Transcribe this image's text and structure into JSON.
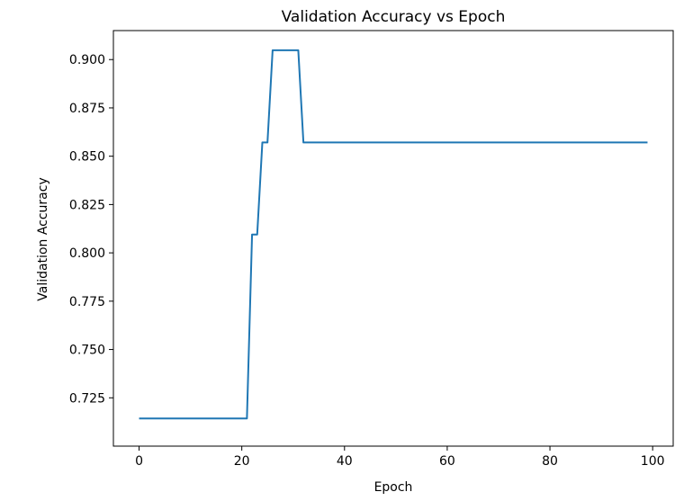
{
  "chart_data": {
    "type": "line",
    "title": "Validation Accuracy vs Epoch",
    "xlabel": "Epoch",
    "ylabel": "Validation Accuracy",
    "xlim": [
      -5,
      104
    ],
    "ylim": [
      0.7,
      0.915
    ],
    "xticks": [
      0,
      20,
      40,
      60,
      80,
      100
    ],
    "yticks": [
      0.725,
      0.75,
      0.775,
      0.8,
      0.825,
      0.85,
      0.875,
      0.9
    ],
    "ytick_labels": [
      "0.725",
      "0.750",
      "0.775",
      "0.800",
      "0.825",
      "0.850",
      "0.875",
      "0.900"
    ],
    "grid": false,
    "series": [
      {
        "color": "#1f77b4",
        "x": [
          0,
          21,
          22,
          23,
          24,
          25,
          26,
          31,
          32,
          99
        ],
        "y": [
          0.7143,
          0.7143,
          0.8095,
          0.8095,
          0.8571,
          0.8571,
          0.9048,
          0.9048,
          0.8571,
          0.8571
        ]
      }
    ]
  }
}
